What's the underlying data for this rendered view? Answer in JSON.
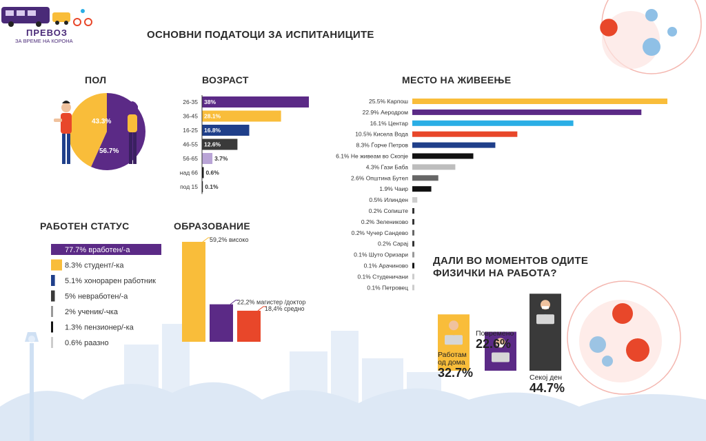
{
  "logo": {
    "title": "ПРЕВОЗ",
    "subtitle": "ЗА ВРЕМЕ НА КОРОНА"
  },
  "main_title": "ОСНОВНИ ПОДАТОЦИ ЗА ИСПИТАНИЦИТЕ",
  "sections": {
    "gender": "ПОЛ",
    "age": "ВОЗРАСТ",
    "residence": "МЕСТО НА ЖИВЕЕЊЕ",
    "work_status": "РАБОТЕН СТАТУС",
    "education": "ОБРАЗОВАНИЕ",
    "physical": {
      "line1": "ДАЛИ ВО МОМЕНТОВ ОДИТЕ",
      "line2": "ФИЗИЧКИ НА РАБОТА?"
    }
  },
  "colors": {
    "purple": "#5b2a86",
    "yellow": "#f9bd3a",
    "blue": "#1f3f8a",
    "dark": "#3a3a3a",
    "red": "#e8472a",
    "cyan": "#2aaee5",
    "lightgray": "#bdbdbd",
    "gray": "#666666",
    "black": "#111111"
  },
  "chart_data": [
    {
      "id": "gender",
      "type": "pie",
      "labels": [
        "43.3%",
        "56.7%"
      ],
      "values": [
        43.3,
        56.7
      ],
      "colors": [
        "#f9bd3a",
        "#5b2a86"
      ]
    },
    {
      "id": "age",
      "type": "bar",
      "categories": [
        "26-35",
        "36-45",
        "16-25",
        "46-55",
        "56-65",
        "над 66",
        "под 15"
      ],
      "labels": [
        "38%",
        "28.1%",
        "16.8%",
        "12.6%",
        "3.7%",
        "0.6%",
        "0.1%"
      ],
      "values": [
        38,
        28.1,
        16.8,
        12.6,
        3.7,
        0.6,
        0.1
      ],
      "colors": [
        "#5b2a86",
        "#f9bd3a",
        "#1f3f8a",
        "#3a3a3a",
        "#b9a4d6",
        "#111111",
        "#111111"
      ]
    },
    {
      "id": "residence",
      "type": "bar",
      "categories": [
        "25.5% Карпош",
        "22.9% Аеродром",
        "16.1% Центар",
        "10.5% Кисела Вода",
        "8.3% Ѓорче Петров",
        "6.1% Не живеам во Скопје",
        "4.3% Гази Баба",
        "2.6% Општина Бутел",
        "1.9% Чаир",
        "0.5% Илинден",
        "0.2% Сопиште",
        "0.2% Зелениково",
        "0.2% Чучер Сандево",
        "0.2% Сарај",
        "0.1% Шуто Оризари",
        "0.1% Арачиново",
        "0.1% Студеничани",
        "0.1% Петровец"
      ],
      "values": [
        25.5,
        22.9,
        16.1,
        10.5,
        8.3,
        6.1,
        4.3,
        2.6,
        1.9,
        0.5,
        0.2,
        0.2,
        0.2,
        0.2,
        0.1,
        0.1,
        0.1,
        0.1
      ],
      "colors": [
        "#f9bd3a",
        "#5b2a86",
        "#2aaee5",
        "#e8472a",
        "#1f3f8a",
        "#111111",
        "#bdbdbd",
        "#666666",
        "#111111",
        "#cccccc",
        "#333333",
        "#333333",
        "#666666",
        "#333333",
        "#999999",
        "#111111",
        "#cccccc",
        "#cccccc"
      ]
    },
    {
      "id": "work_status",
      "type": "bar",
      "categories": [
        "77.7% вработен/-а",
        "8.3% студент/-ка",
        "5.1% хонорарен работник",
        "5% невработен/-а",
        "2% ученик/-чка",
        "1.3% пензионер/-ка",
        "0.6% раазно"
      ],
      "values": [
        77.7,
        8.3,
        5.1,
        5,
        2,
        1.3,
        0.6
      ],
      "colors": [
        "#5b2a86",
        "#f9bd3a",
        "#1f3f8a",
        "#3a3a3a",
        "#999999",
        "#111111",
        "#cccccc"
      ]
    },
    {
      "id": "education",
      "type": "bar",
      "categories": [
        "59,2% високо",
        "22,2% магистер /доктор",
        "18,4% средно"
      ],
      "values": [
        59.2,
        22.2,
        18.4
      ],
      "colors": [
        "#f9bd3a",
        "#5b2a86",
        "#e8472a"
      ]
    },
    {
      "id": "physical_work",
      "type": "bar",
      "categories": [
        "Работам од дома",
        "Повремено",
        "Секој ден"
      ],
      "values": [
        32.7,
        22.6,
        44.7
      ],
      "labels": [
        "32.7%",
        "22.6%",
        "44.7%"
      ],
      "label_lines": [
        [
          "Работам",
          "од дома"
        ],
        [
          "Повремено"
        ],
        [
          "Секој ден"
        ]
      ],
      "colors": [
        "#f9bd3a",
        "#5b2a86",
        "#3a3a3a"
      ]
    }
  ]
}
